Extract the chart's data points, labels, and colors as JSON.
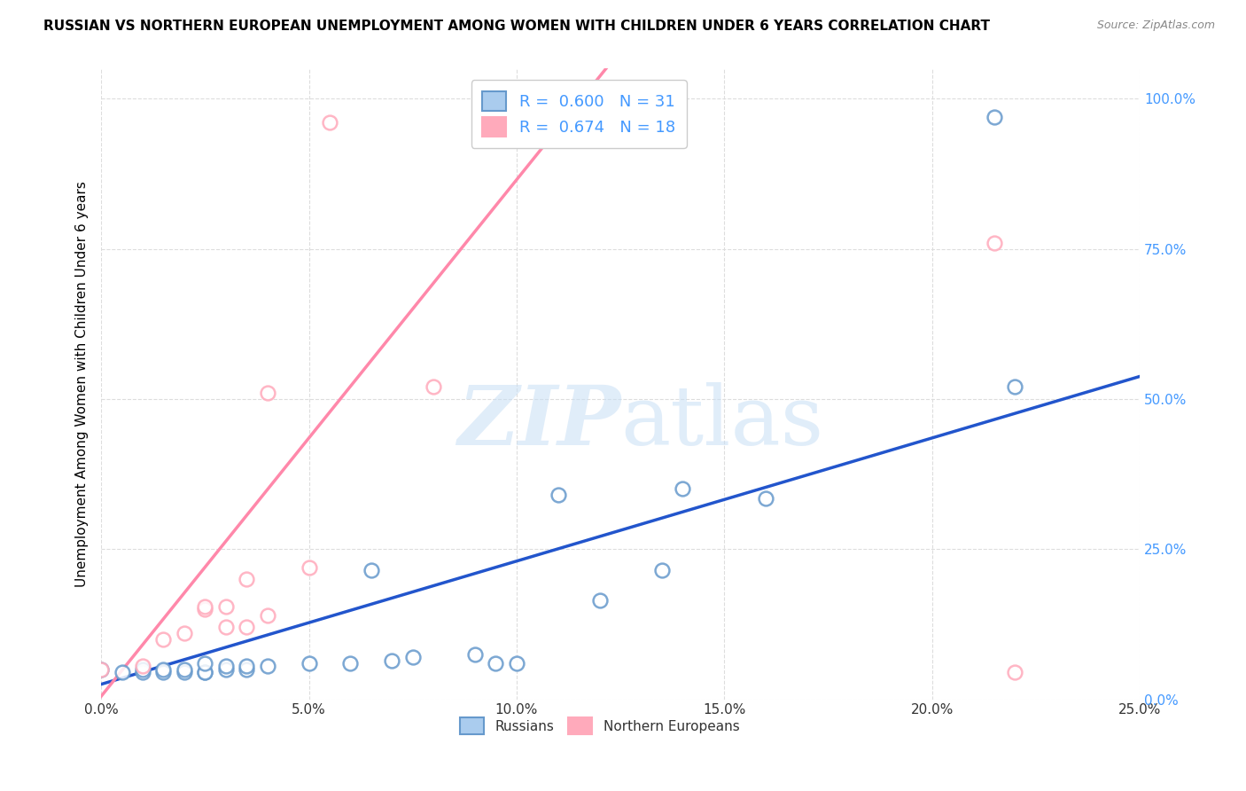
{
  "title": "RUSSIAN VS NORTHERN EUROPEAN UNEMPLOYMENT AMONG WOMEN WITH CHILDREN UNDER 6 YEARS CORRELATION CHART",
  "source": "Source: ZipAtlas.com",
  "ylabel": "Unemployment Among Women with Children Under 6 years",
  "xlim": [
    0.0,
    0.25
  ],
  "ylim": [
    0.0,
    1.05
  ],
  "x_ticks": [
    0.0,
    0.05,
    0.1,
    0.15,
    0.2,
    0.25
  ],
  "y_ticks": [
    0.0,
    0.25,
    0.5,
    0.75,
    1.0
  ],
  "russians_R": 0.6,
  "russians_N": 31,
  "northern_R": 0.674,
  "northern_N": 18,
  "russians_color": "#6699cc",
  "northern_color": "#ffaabb",
  "russians_line_color": "#2255cc",
  "northern_line_color": "#ff88aa",
  "marker_size": 130,
  "russians_x": [
    0.0,
    0.005,
    0.01,
    0.01,
    0.015,
    0.015,
    0.02,
    0.02,
    0.025,
    0.025,
    0.025,
    0.03,
    0.03,
    0.035,
    0.035,
    0.04,
    0.05,
    0.06,
    0.065,
    0.07,
    0.075,
    0.09,
    0.095,
    0.1,
    0.11,
    0.12,
    0.135,
    0.14,
    0.16,
    0.215,
    0.22
  ],
  "russians_y": [
    0.05,
    0.045,
    0.045,
    0.05,
    0.045,
    0.05,
    0.045,
    0.05,
    0.045,
    0.045,
    0.06,
    0.05,
    0.055,
    0.05,
    0.055,
    0.055,
    0.06,
    0.06,
    0.215,
    0.065,
    0.07,
    0.075,
    0.06,
    0.06,
    0.34,
    0.165,
    0.215,
    0.35,
    0.335,
    0.97,
    0.52
  ],
  "northern_x": [
    0.0,
    0.01,
    0.015,
    0.02,
    0.025,
    0.025,
    0.03,
    0.03,
    0.035,
    0.035,
    0.04,
    0.04,
    0.05,
    0.055,
    0.08,
    0.1,
    0.215,
    0.22
  ],
  "northern_y": [
    0.05,
    0.055,
    0.1,
    0.11,
    0.15,
    0.155,
    0.12,
    0.155,
    0.12,
    0.2,
    0.14,
    0.51,
    0.22,
    0.96,
    0.52,
    1.0,
    0.76,
    0.045
  ],
  "regression_russians_slope": 2.05,
  "regression_russians_intercept": 0.025,
  "regression_northern_slope": 8.6,
  "regression_northern_intercept": 0.005,
  "watermark_line1": "ZIP",
  "watermark_line2": "atlas",
  "background_color": "#ffffff",
  "grid_color": "#dddddd",
  "ytick_color": "#4499ff",
  "xtick_color": "#333333",
  "title_fontsize": 11,
  "source_fontsize": 9,
  "axis_label_fontsize": 11,
  "tick_fontsize": 11,
  "legend_fontsize": 13
}
